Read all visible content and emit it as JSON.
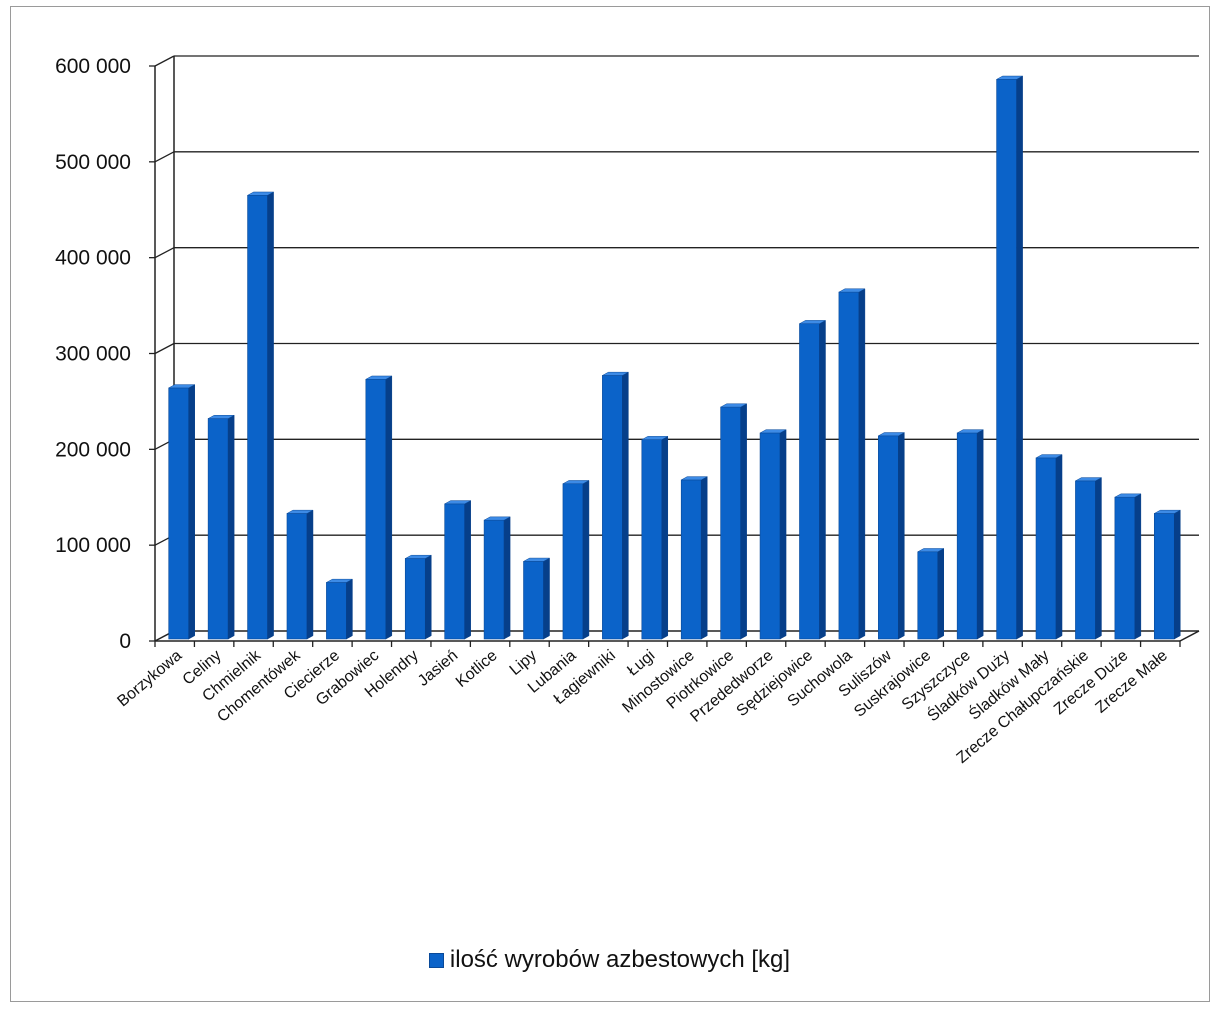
{
  "chart_data": {
    "type": "bar",
    "categories": [
      "Borzykowa",
      "Celiny",
      "Chmielnik",
      "Chomentówek",
      "Ciecierze",
      "Grabowiec",
      "Holendry",
      "Jasień",
      "Kotlice",
      "Lipy",
      "Lubania",
      "Łagiewniki",
      "Ługi",
      "Minostowice",
      "Piotrkowice",
      "Przededworze",
      "Sędziejowice",
      "Suchowola",
      "Suliszów",
      "Suskrajowice",
      "Szyszczyce",
      "Śladków Duży",
      "Śladków Mały",
      "Zrecze Chałupczańskie",
      "Zrecze Duże",
      "Zrecze Małe"
    ],
    "series": [
      {
        "name": "ilość wyrobów azbestowych [kg]",
        "values": [
          262000,
          230000,
          463000,
          131000,
          59000,
          271000,
          84000,
          141000,
          124000,
          81000,
          162000,
          275000,
          208000,
          166000,
          242000,
          215000,
          329000,
          362000,
          212000,
          91000,
          215000,
          584000,
          189000,
          165000,
          148000,
          131000
        ],
        "color": "#0b63c9"
      }
    ],
    "ylim": [
      0,
      600000
    ],
    "yticks": [
      0,
      100000,
      200000,
      300000,
      400000,
      500000,
      600000
    ],
    "ytick_labels": [
      "0",
      "100 000",
      "200 000",
      "300 000",
      "400 000",
      "500 000",
      "600 000"
    ],
    "grid": true,
    "legend_position": "bottom",
    "title": "",
    "xlabel": "",
    "ylabel": ""
  }
}
